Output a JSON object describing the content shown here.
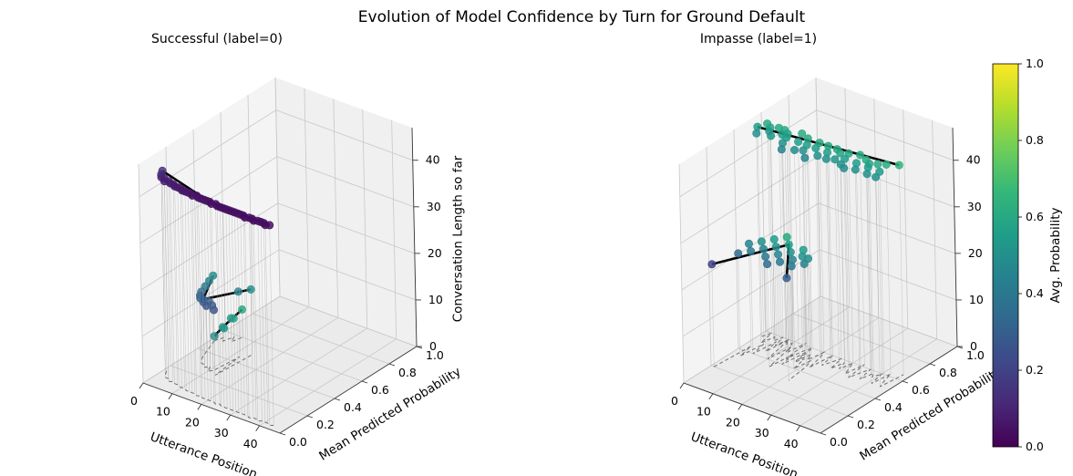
{
  "figure": {
    "title": "Evolution of Model Confidence by Turn for Ground Default"
  },
  "colorbar": {
    "label": "Avg. Probability",
    "ticks": [
      "0.0",
      "0.2",
      "0.4",
      "0.6",
      "0.8",
      "1.0"
    ],
    "range": [
      0,
      1
    ],
    "colormap": "viridis",
    "colors": [
      "#440154",
      "#482878",
      "#3e4989",
      "#31688e",
      "#26828e",
      "#1f9e89",
      "#35b779",
      "#6ece58",
      "#b5de2b",
      "#fde725"
    ]
  },
  "chart_data": [
    {
      "type": "scatter3d",
      "title": "Successful (label=0)",
      "xlabel": "Utterance Position",
      "ylabel": "Mean Predicted Probability",
      "zlabel": "Conversation Length so far",
      "x_ticks": [
        "0",
        "10",
        "20",
        "30",
        "40"
      ],
      "y_ticks": [
        "0.0",
        "0.2",
        "0.4",
        "0.6",
        "0.8",
        "1.0"
      ],
      "z_ticks": [
        "0",
        "10",
        "20",
        "30",
        "40"
      ],
      "xlim": [
        0,
        47
      ],
      "ylim": [
        0,
        1
      ],
      "zlim": [
        0,
        47
      ],
      "grid": true,
      "series": [
        {
          "x": [
            1,
            2,
            3,
            4,
            5,
            6
          ],
          "y": [
            0.5,
            0.55,
            0.52,
            0.58,
            0.54,
            0.6
          ],
          "z": [
            1,
            2,
            3,
            4,
            5,
            6
          ]
        },
        {
          "x": [
            1,
            2,
            3,
            4,
            5,
            6,
            7,
            8,
            9,
            10,
            11,
            12,
            13,
            14
          ],
          "y": [
            0.5,
            0.45,
            0.4,
            0.35,
            0.32,
            0.3,
            0.3,
            0.28,
            0.3,
            0.26,
            0.28,
            0.45,
            0.25,
            0.5
          ],
          "z": [
            14,
            14,
            14,
            14,
            14,
            14,
            14,
            14,
            14,
            14,
            14,
            14,
            14,
            14
          ]
        },
        {
          "x": [
            1,
            2,
            3,
            4,
            5,
            6,
            7,
            8,
            9,
            10,
            11,
            12,
            13,
            14,
            15,
            16,
            17,
            18,
            19,
            20,
            21,
            22,
            23,
            24,
            25,
            26,
            27,
            28,
            29,
            30,
            31,
            32,
            33,
            34,
            35,
            36,
            37,
            38,
            39,
            40,
            41,
            42,
            43
          ],
          "y": [
            0.15,
            0.12,
            0.1,
            0.1,
            0.08,
            0.09,
            0.08,
            0.08,
            0.07,
            0.07,
            0.07,
            0.06,
            0.06,
            0.06,
            0.06,
            0.05,
            0.06,
            0.05,
            0.05,
            0.05,
            0.05,
            0.05,
            0.04,
            0.05,
            0.04,
            0.04,
            0.04,
            0.04,
            0.04,
            0.04,
            0.04,
            0.04,
            0.04,
            0.04,
            0.03,
            0.04,
            0.04,
            0.03,
            0.04,
            0.04,
            0.04,
            0.03,
            0.04
          ],
          "z": [
            43,
            43,
            43,
            43,
            43,
            43,
            43,
            43,
            43,
            43,
            43,
            43,
            43,
            43,
            43,
            43,
            43,
            43,
            43,
            43,
            43,
            43,
            43,
            43,
            43,
            43,
            43,
            43,
            43,
            43,
            43,
            43,
            43,
            43,
            43,
            43,
            43,
            43,
            43,
            43,
            43,
            43,
            43
          ]
        }
      ]
    },
    {
      "type": "scatter3d",
      "title": "Impasse (label=1)",
      "xlabel": "Utterance Position",
      "ylabel": "Mean Predicted Probability",
      "zlabel": "Conversation Length so far",
      "x_ticks": [
        "0",
        "10",
        "20",
        "30",
        "40"
      ],
      "y_ticks": [
        "0.0",
        "0.2",
        "0.4",
        "0.6",
        "0.8",
        "1.0"
      ],
      "z_ticks": [
        "0",
        "10",
        "20",
        "30",
        "40"
      ],
      "xlim": [
        0,
        47
      ],
      "ylim": [
        0,
        1
      ],
      "zlim": [
        0,
        47
      ],
      "grid": true,
      "series": [
        {
          "x": [
            1,
            2,
            3,
            4,
            5,
            6,
            7,
            8,
            9,
            10,
            11,
            12,
            13,
            14,
            15,
            16,
            17,
            18,
            19,
            20,
            21,
            22,
            23,
            24,
            25,
            26,
            27,
            28,
            29,
            30,
            31,
            32,
            33,
            34,
            35,
            36,
            37,
            38,
            39,
            40,
            41,
            42,
            43,
            44,
            45
          ],
          "y": [
            0.55,
            0.6,
            0.5,
            0.58,
            0.55,
            0.6,
            0.52,
            0.6,
            0.56,
            0.58,
            0.55,
            0.5,
            0.62,
            0.45,
            0.55,
            0.6,
            0.48,
            0.55,
            0.5,
            0.6,
            0.55,
            0.45,
            0.6,
            0.5,
            0.55,
            0.6,
            0.5,
            0.58,
            0.52,
            0.6,
            0.55,
            0.5,
            0.62,
            0.48,
            0.55,
            0.6,
            0.5,
            0.58,
            0.55,
            0.6,
            0.5,
            0.62,
            0.55,
            0.5,
            0.65
          ],
          "z": [
            45,
            45,
            45,
            45,
            45,
            45,
            45,
            45,
            45,
            45,
            45,
            45,
            45,
            45,
            45,
            45,
            45,
            45,
            45,
            45,
            45,
            45,
            45,
            45,
            45,
            45,
            45,
            45,
            45,
            45,
            45,
            45,
            45,
            45,
            45,
            45,
            45,
            45,
            45,
            45,
            45,
            45,
            45,
            45,
            45
          ]
        },
        {
          "x": [
            1,
            2,
            3,
            4,
            5,
            6,
            7,
            8,
            9,
            10,
            11,
            12,
            13,
            14,
            15,
            16,
            17,
            18,
            19,
            20,
            21,
            22
          ],
          "y": [
            0.2,
            0.45,
            0.35,
            0.5,
            0.4,
            0.55,
            0.45,
            0.6,
            0.5,
            0.4,
            0.55,
            0.45,
            0.35,
            0.5,
            0.4,
            0.55,
            0.45,
            0.5,
            0.4,
            0.5,
            0.45,
            0.3
          ],
          "z": [
            22,
            22,
            22,
            22,
            22,
            22,
            22,
            22,
            22,
            22,
            22,
            22,
            22,
            22,
            22,
            22,
            22,
            22,
            22,
            22,
            22,
            22
          ]
        }
      ]
    }
  ]
}
